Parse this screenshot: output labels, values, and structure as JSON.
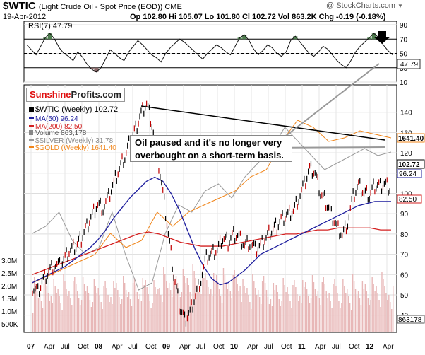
{
  "header": {
    "symbol": "$WTIC",
    "name": "(Light Crude Oil - Spot Price (EOD)) CME",
    "date": "19-Apr-2012",
    "ohlc": "Op 102.80  Hi 105.07  Lo 101.80  Cl 102.72  Vol 863.2K  Chg -0.19 (-0.18%)",
    "copyright": "@ StockCharts.com",
    "dropdown_glyph": "▼"
  },
  "logo": {
    "part1": "Sunshine",
    "part2": "Profits.com"
  },
  "callout": {
    "line1": "Oil paused and it's no longer very",
    "line2": "overbought on a short-term basis."
  },
  "colors": {
    "price": "#000000",
    "ma50": "#1e1e9e",
    "ma200": "#d42020",
    "silver": "#9a9a9a",
    "gold": "#f08418",
    "volume": "#e8b8b8",
    "rsi_over": "#4f7f4f",
    "rsi_under": "#8c6a6a"
  },
  "chart_data": {
    "type": "line",
    "x_labels": [
      "07",
      "Apr",
      "Jul",
      "Oct",
      "08",
      "Apr",
      "Jul",
      "Oct",
      "09",
      "Apr",
      "Jul",
      "Oct",
      "10",
      "Apr",
      "Jul",
      "Oct",
      "11",
      "Apr",
      "Jul",
      "Oct",
      "12",
      "Apr"
    ],
    "rsi": {
      "label": "RSI(7) 47.79",
      "value": "47.79",
      "ticks": [
        "90",
        "70",
        "50",
        "30",
        "10"
      ],
      "ylim": [
        10,
        95
      ],
      "values": [
        62,
        55,
        48,
        60,
        72,
        78,
        70,
        58,
        50,
        46,
        40,
        52,
        45,
        35,
        28,
        24,
        30,
        42,
        55,
        50,
        44,
        40,
        52,
        60,
        68,
        62,
        55,
        48,
        44,
        38,
        50,
        58,
        64,
        70,
        66,
        60,
        54,
        48,
        42,
        50,
        56,
        62,
        58,
        52,
        48,
        60,
        72,
        76,
        68,
        56,
        48,
        54,
        62,
        58,
        50,
        46,
        52,
        68,
        74,
        66,
        58,
        50,
        46,
        52,
        60,
        56,
        48,
        40,
        34,
        30,
        40,
        52,
        60,
        66,
        72,
        78,
        72,
        62,
        54,
        48
      ]
    },
    "price": {
      "label": "$WTIC (Weekly) 102.72",
      "current": "102.72",
      "ticks": [
        "140",
        "130",
        "120",
        "110",
        "100",
        "90",
        "80",
        "70",
        "60",
        "50",
        "40"
      ],
      "ylim": [
        35,
        150
      ],
      "series": [
        {
          "name": "$WTIC (Weekly) 102.72",
          "values": [
            54,
            52,
            58,
            62,
            65,
            64,
            68,
            72,
            74,
            78,
            84,
            90,
            95,
            93,
            98,
            105,
            112,
            118,
            126,
            132,
            140,
            145,
            135,
            118,
            100,
            80,
            60,
            45,
            38,
            42,
            50,
            58,
            68,
            70,
            72,
            78,
            76,
            80,
            79,
            75,
            76,
            72,
            74,
            78,
            82,
            84,
            88,
            90,
            92,
            98,
            104,
            112,
            110,
            100,
            96,
            90,
            84,
            80,
            86,
            98,
            104,
            100,
            99,
            104,
            104,
            105,
            102
          ]
        },
        {
          "name": "MA(50) 96.24",
          "values": [
            56,
            58,
            60,
            62,
            64,
            67,
            70,
            73,
            77,
            82,
            88,
            93,
            98,
            102,
            106,
            108,
            106,
            100,
            92,
            82,
            72,
            64,
            58,
            55,
            56,
            59,
            62,
            66,
            70,
            72,
            74,
            76,
            78,
            80,
            82,
            84,
            86,
            88,
            90,
            92,
            94,
            95,
            96,
            96,
            96
          ]
        },
        {
          "name": "MA(200) 82.50",
          "values": [
            60,
            62,
            64,
            66,
            68,
            70,
            72,
            74,
            76,
            78,
            80,
            81,
            80,
            78,
            76,
            75,
            74,
            74,
            74,
            75,
            76,
            77,
            78,
            79,
            80,
            80,
            81,
            82,
            82,
            83,
            83,
            83,
            83,
            82,
            82
          ]
        }
      ]
    },
    "volume": {
      "label": "Volume 863,178",
      "current": "863178",
      "ticks": [
        "3.0M",
        "2.5M",
        "2.0M",
        "1.5M",
        "1.0M",
        "500K"
      ]
    },
    "overlays": [
      {
        "name": "$SILVER (Weekly) 31.78"
      },
      {
        "name": "$GOLD (Weekly) 1641.40",
        "current": "1641.40"
      }
    ],
    "ma50_value": "96.24",
    "ma200_value": "82.50"
  },
  "legend": {
    "price": "$WTIC (Weekly) 102.72",
    "ma50": "MA(50) 96.24",
    "ma200": "MA(200) 82.50",
    "volume": "Volume 863,178",
    "silver": "$SILVER (Weekly) 31.78",
    "gold": "$GOLD (Weekly) 1641.40"
  }
}
